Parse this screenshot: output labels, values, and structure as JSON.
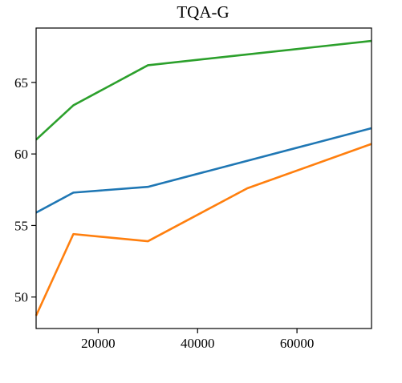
{
  "chart_data": {
    "type": "line",
    "title": "TQA-G",
    "xlabel": "",
    "ylabel": "",
    "xlim": [
      7500,
      75000
    ],
    "ylim": [
      47.8,
      68.8
    ],
    "xticks": [
      20000,
      40000,
      60000
    ],
    "xtick_labels": [
      "20000",
      "40000",
      "60000"
    ],
    "yticks": [
      50,
      55,
      60,
      65
    ],
    "ytick_labels": [
      "50",
      "55",
      "60",
      "65"
    ],
    "grid": false,
    "legend": "none",
    "series": [
      {
        "color": "#1f77b4",
        "x": [
          7500,
          15000,
          30000,
          75000
        ],
        "y": [
          55.9,
          57.3,
          57.7,
          61.8
        ]
      },
      {
        "color": "#ff7f0e",
        "x": [
          7500,
          15000,
          30000,
          50000,
          75000
        ],
        "y": [
          48.7,
          54.4,
          53.9,
          57.6,
          60.7
        ]
      },
      {
        "color": "#2ca02c",
        "x": [
          7500,
          15000,
          30000,
          75000
        ],
        "y": [
          61.0,
          63.4,
          66.2,
          67.9
        ]
      }
    ]
  }
}
